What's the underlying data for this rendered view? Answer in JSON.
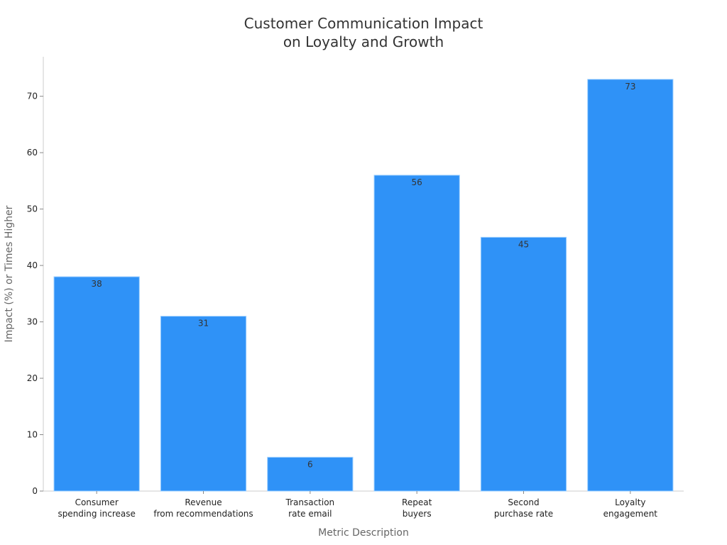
{
  "chart_data": {
    "type": "bar",
    "title": [
      "Customer Communication Impact",
      "on Loyalty and Growth"
    ],
    "xlabel": "Metric Description",
    "ylabel": "Impact (%) or Times Higher",
    "categories": [
      [
        "Consumer",
        "spending increase"
      ],
      [
        "Revenue",
        "from recommendations"
      ],
      [
        "Transaction",
        "rate email"
      ],
      [
        "Repeat",
        "buyers"
      ],
      [
        "Second",
        "purchase rate"
      ],
      [
        "Loyalty",
        "engagement"
      ]
    ],
    "values": [
      38,
      31,
      6,
      56,
      45,
      73
    ],
    "ylim": [
      0,
      77
    ],
    "yticks": [
      0,
      10,
      20,
      30,
      40,
      50,
      60,
      70
    ],
    "grid": false,
    "legend": "none",
    "bar_color": "#2f92f7"
  }
}
